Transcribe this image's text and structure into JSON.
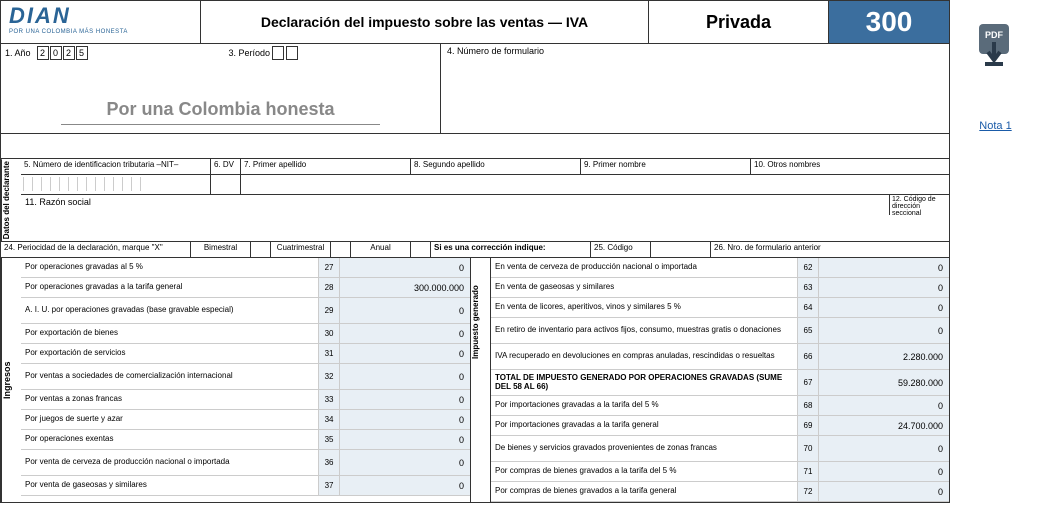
{
  "header": {
    "logo": "DIAN",
    "logo_sub": "POR UNA COLOMBIA MÁS HONESTA",
    "title": "Declaración del impuesto sobre las ventas — IVA",
    "privada": "Privada",
    "form_number": "300"
  },
  "row1": {
    "year_label": "1. Año",
    "year": [
      "2",
      "0",
      "2",
      "5"
    ],
    "periodo_label": "3. Período",
    "num_form_label": "4. Número de formulario",
    "slogan": "Por una Colombia honesta"
  },
  "datos": {
    "section_label": "Datos del declarante",
    "nit_label": "5. Número de identificacion tributaria –NIT–",
    "dv_label": "6. DV",
    "ap1_label": "7. Primer apellido",
    "ap2_label": "8. Segundo apellido",
    "nom1_label": "9. Primer nombre",
    "nom2_label": "10. Otros nombres",
    "razon_label": "11. Razón social",
    "codigo_label": "12. Código de dirección seccional"
  },
  "periodicidad": {
    "label": "24. Periocidad de la declaración, marque \"X\"",
    "bimestral": "Bimestral",
    "cuatrimestral": "Cuatrimestral",
    "anual": "Anual",
    "correccion": "Si es una corrección indique:",
    "codigo": "25. Código",
    "anterior": "26. Nro. de formulario anterior"
  },
  "left_section_label": "Ingresos",
  "right_section_label": "Impuesto generado",
  "left_rows": [
    {
      "desc": "Por operaciones gravadas al 5 %",
      "num": "27",
      "val": "0"
    },
    {
      "desc": "Por operaciones gravadas a la tarifa general",
      "num": "28",
      "val": "300.000.000"
    },
    {
      "desc": "A. I. U. por operaciones gravadas (base gravable especial)",
      "num": "29",
      "val": "0",
      "tall": true
    },
    {
      "desc": "Por exportación de bienes",
      "num": "30",
      "val": "0"
    },
    {
      "desc": "Por exportación de servicios",
      "num": "31",
      "val": "0"
    },
    {
      "desc": "Por ventas a sociedades de comercialización internacional",
      "num": "32",
      "val": "0",
      "tall": true
    },
    {
      "desc": "Por ventas a zonas francas",
      "num": "33",
      "val": "0"
    },
    {
      "desc": "Por juegos de suerte y azar",
      "num": "34",
      "val": "0"
    },
    {
      "desc": "Por operaciones exentas",
      "num": "35",
      "val": "0"
    },
    {
      "desc": "Por venta de cerveza de producción nacional o importada",
      "num": "36",
      "val": "0",
      "tall": true
    },
    {
      "desc": "Por venta de gaseosas y similares",
      "num": "37",
      "val": "0"
    }
  ],
  "right_rows": [
    {
      "desc": "En venta de cerveza de producción nacional o importada",
      "num": "62",
      "val": "0"
    },
    {
      "desc": "En venta de gaseosas y similares",
      "num": "63",
      "val": "0"
    },
    {
      "desc": "En venta de licores, aperitivos, vinos y similares 5 %",
      "num": "64",
      "val": "0"
    },
    {
      "desc": "En retiro de inventario para activos fijos, consumo, muestras gratis o donaciones",
      "num": "65",
      "val": "0",
      "tall": true
    },
    {
      "desc": "IVA recuperado en devoluciones en compras anuladas, rescindidas o resueltas",
      "num": "66",
      "val": "2.280.000",
      "tall": true
    },
    {
      "desc": "TOTAL DE IMPUESTO GENERADO POR OPERACIONES GRAVADAS (SUME DEL 58 AL 66)",
      "num": "67",
      "val": "59.280.000",
      "tall": true,
      "bold": true
    },
    {
      "desc": "Por importaciones gravadas a la tarifa del 5 %",
      "num": "68",
      "val": "0"
    },
    {
      "desc": "Por importaciones gravadas a la tarifa general",
      "num": "69",
      "val": "24.700.000"
    },
    {
      "desc": "De bienes y servicios gravados provenientes de zonas francas",
      "num": "70",
      "val": "0",
      "tall": true
    },
    {
      "desc": "Por compras de bienes gravados a la tarifa del 5 %",
      "num": "71",
      "val": "0"
    },
    {
      "desc": "Por compras de bienes gravados a la tarifa general",
      "num": "72",
      "val": "0"
    }
  ],
  "side": {
    "pdf_label": "PDF",
    "nota": "Nota 1"
  },
  "colors": {
    "accent": "#3b6e9e",
    "cell_bg": "#e8eff5",
    "logo_color": "#2a6496"
  }
}
